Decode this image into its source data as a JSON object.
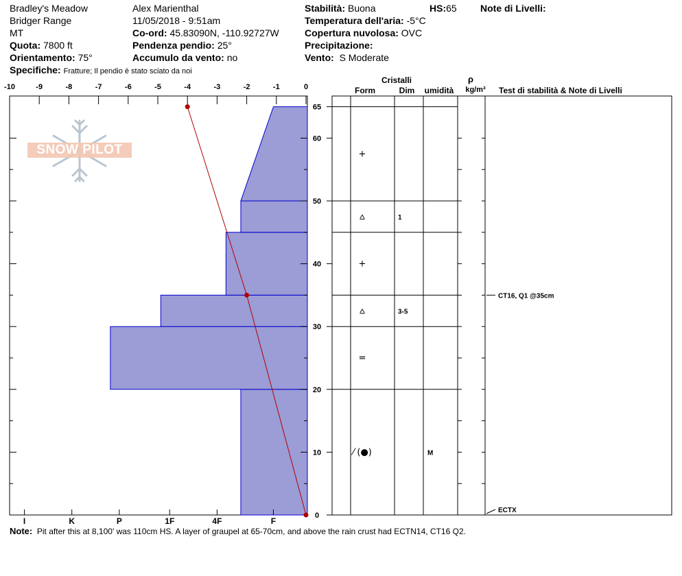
{
  "header": {
    "location": "Bradley's Meadow",
    "range": "Bridger Range",
    "state": "MT",
    "elevation_label": "Quota:",
    "elevation_value": "7800 ft",
    "aspect_label": "Orientamento:",
    "aspect_value": "75°",
    "specifics_label": "Specifiche:",
    "specifics_value": "Fratture;  Il pendio è stato sciato da noi",
    "observer": "Alex Marienthal",
    "datetime": "11/05/2018 - 9:51am",
    "coords_label": "Co-ord:",
    "coords_value": "45.83090N, -110.92727W",
    "slope_label": "Pendenza pendio:",
    "slope_value": "25°",
    "wind_load_label": "Accumulo da vento:",
    "wind_load_value": "no",
    "stability_label": "Stabilità:",
    "stability_value": "Buona",
    "hs_label": "HS:",
    "hs_value": "65",
    "air_temp_label": "Temperatura dell'aria:",
    "air_temp_value": "-5°C",
    "sky_label": "Copertura nuvolosa:",
    "sky_value": "OVC",
    "precip_label": "Precipitazione:",
    "precip_value": "",
    "wind_label": "Vento:",
    "wind_value": "S Moderate",
    "layer_notes_label": "Note di Livelli:"
  },
  "note": {
    "label": "Note:",
    "text": "Pit after this at 8,100' was 110cm HS. A layer of graupel at 65-70cm, and above the rain crust had ECTN14, CT16 Q2."
  },
  "logo": {
    "text": "SNOW PILOT"
  },
  "table_headers": {
    "crystals": "Cristalli",
    "form": "Form",
    "size": "Dim",
    "moisture": "umidità",
    "density_symbol": "ρ",
    "density_unit": "kg/m³",
    "tests": "Test di stabilità & Note di Livelli"
  },
  "chart_data": {
    "type": "area",
    "height_axis": {
      "ticks": [
        0,
        10,
        20,
        30,
        40,
        50,
        60,
        65
      ],
      "range": [
        0,
        65
      ],
      "unit": "cm"
    },
    "temperature_axis": {
      "ticks": [
        -10,
        -9,
        -8,
        -7,
        -6,
        -5,
        -4,
        -3,
        -2,
        -1,
        0
      ],
      "range": [
        -10,
        0
      ]
    },
    "hardness_axis": {
      "labels": [
        "I",
        "K",
        "P",
        "1F",
        "4F",
        "F"
      ],
      "positions": [
        9.5,
        7.9,
        6.3,
        4.6,
        3.0,
        1.1
      ]
    },
    "hardness_profile": [
      {
        "bottom": 0,
        "top": 20,
        "hardness": 2.2
      },
      {
        "bottom": 20,
        "top": 30,
        "hardness": 6.6
      },
      {
        "bottom": 30,
        "top": 35,
        "hardness": 4.9
      },
      {
        "bottom": 35,
        "top": 45,
        "hardness": 2.7
      },
      {
        "bottom": 45,
        "top": 50,
        "hardness": 2.2
      },
      {
        "bottom": 50,
        "top": 65,
        "hardness_bottom": 2.2,
        "hardness_top": 1.1
      }
    ],
    "temperature_profile": [
      {
        "height": 65,
        "temp": -4
      },
      {
        "height": 35,
        "temp": -2
      },
      {
        "height": 0,
        "temp": 0
      }
    ],
    "layer_boundaries": [
      65,
      50,
      45,
      35,
      30,
      20
    ],
    "layers": [
      {
        "top": 65,
        "bottom": 50,
        "form": "+",
        "size": "",
        "moisture": ""
      },
      {
        "top": 50,
        "bottom": 45,
        "form": "⩟",
        "size": "1",
        "moisture": ""
      },
      {
        "top": 45,
        "bottom": 35,
        "form": "+",
        "size": "",
        "moisture": ""
      },
      {
        "top": 35,
        "bottom": 30,
        "form": "⩟",
        "size": "3-5",
        "moisture": ""
      },
      {
        "top": 30,
        "bottom": 20,
        "form": "=",
        "size": "",
        "moisture": ""
      },
      {
        "top": 20,
        "bottom": 0,
        "form": "⁄ (●)",
        "size": "",
        "moisture": "M"
      }
    ],
    "tests": [
      {
        "height": 35,
        "text": "CT16, Q1 @35cm"
      },
      {
        "height": 0,
        "text": "ECTX"
      }
    ]
  },
  "colors": {
    "fill": "#9c9cd6",
    "stroke": "#0000cc",
    "temp": "#b00000"
  }
}
